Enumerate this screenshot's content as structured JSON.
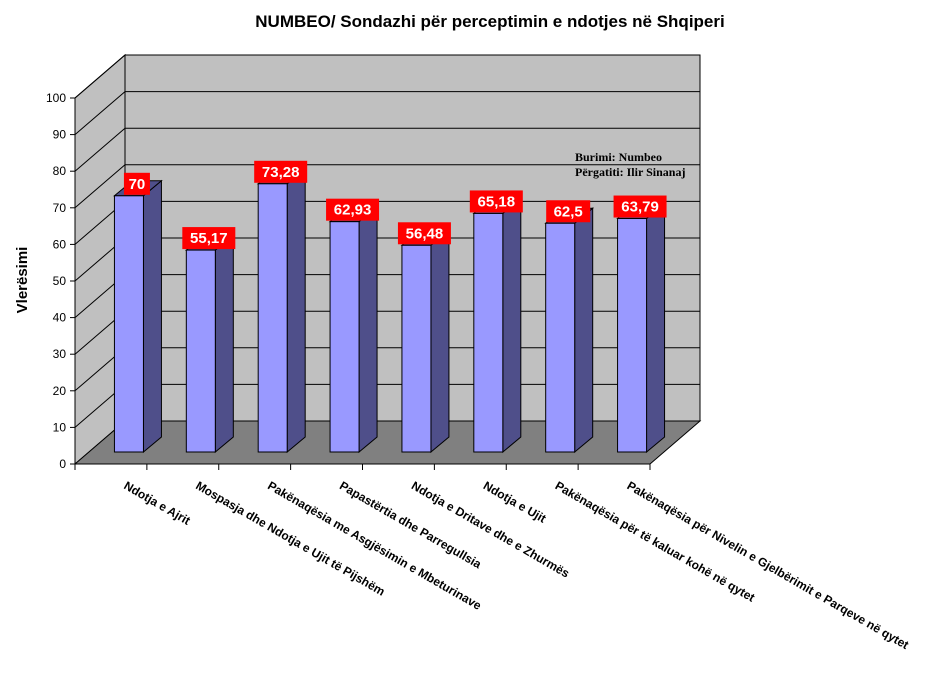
{
  "chart_data": {
    "type": "bar",
    "title": "NUMBEO/ Sondazhi për perceptimin e ndotjes në Shqiperi",
    "ylabel": "Vlerësimi",
    "xlabel": "",
    "ylim": [
      0,
      100
    ],
    "yticks": [
      "0",
      "10",
      "20",
      "30",
      "40",
      "50",
      "60",
      "70",
      "80",
      "90",
      "100"
    ],
    "categories": [
      "Ndotja e Ajrit",
      "Mospasja dhe Ndotja e Ujit të Pijshëm",
      "Pakënaqësia me Asgjësimin e Mbeturinave",
      "Papastërtia dhe Parregullsia",
      "Ndotja e Dritave dhe e Zhurmës",
      "Ndotja e Ujit",
      "Pakënaqësia për të kaluar kohë në qytet",
      "Pakënaqësia për Nivelin e Gjelbërimit e Parqeve në qytet"
    ],
    "values": [
      70,
      55.17,
      73.28,
      62.93,
      56.48,
      65.18,
      62.5,
      63.79
    ],
    "data_labels": [
      "70",
      "55,17",
      "73,28",
      "62,93",
      "56,48",
      "65,18",
      "62,5",
      "63,79"
    ],
    "annotations": [
      "Burimi: Numbeo",
      "Përgatiti: Ilir Sinanaj"
    ],
    "grid": true,
    "colors": {
      "bar_front": "#9999ff",
      "bar_side": "#4f4f8a",
      "wall": "#c0c0c0",
      "floor": "#808080",
      "label_bg": "#ff0000",
      "label_text": "#ffffff"
    }
  }
}
